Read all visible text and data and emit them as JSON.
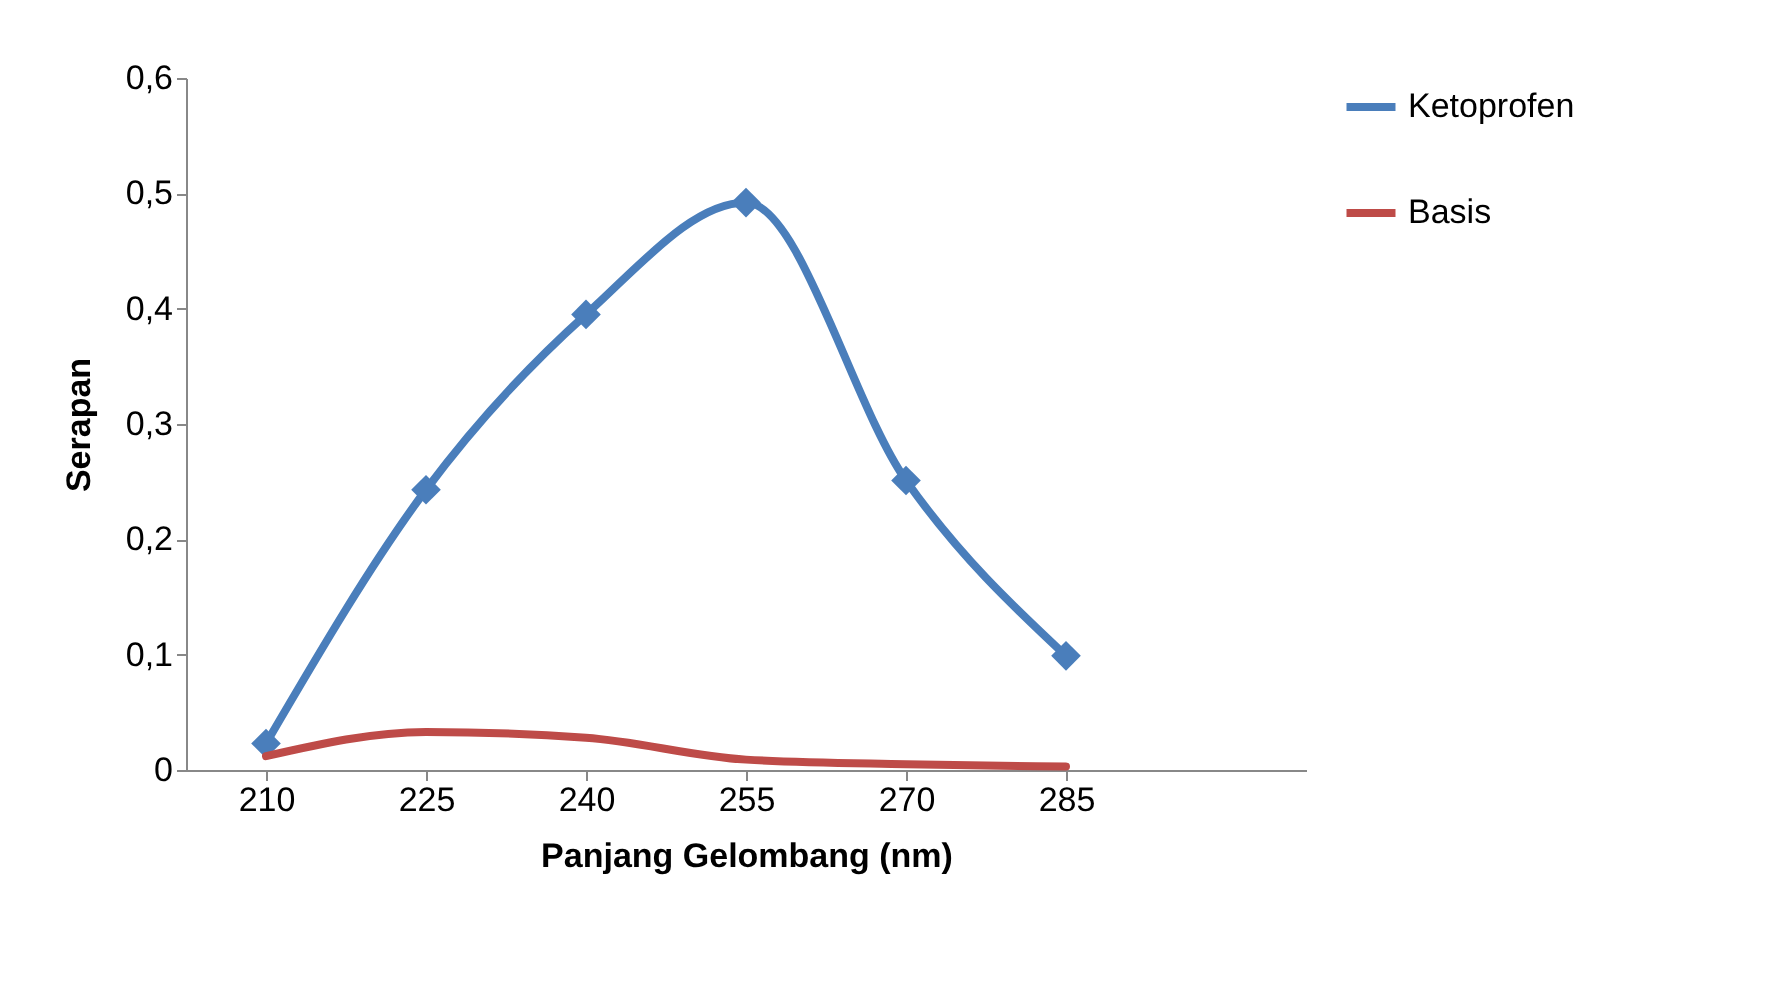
{
  "chart_data": {
    "type": "line",
    "xlabel": "Panjang Gelombang (nm)",
    "ylabel": "Serapan",
    "x": [
      210,
      225,
      240,
      255,
      270,
      285
    ],
    "series": [
      {
        "name": "Ketoprofen",
        "color": "#4a7ebb",
        "marker": "diamond",
        "values": [
          0.023,
          0.243,
          0.395,
          0.492,
          0.251,
          0.099
        ]
      },
      {
        "name": "Basis",
        "color": "#be4b48",
        "marker": "none",
        "values": [
          0.012,
          0.033,
          0.028,
          0.009,
          0.005,
          0.003
        ]
      }
    ],
    "xlim": [
      202.5,
      307.5
    ],
    "xticks": [
      210,
      225,
      240,
      255,
      270,
      285
    ],
    "ylim": [
      0,
      0.6
    ],
    "yticks": [
      0,
      {
        "value": 0.1,
        "label": "0,1"
      },
      {
        "value": 0.2,
        "label": "0,2"
      },
      {
        "value": 0.3,
        "label": "0,3"
      },
      {
        "value": 0.4,
        "label": "0,4"
      },
      {
        "value": 0.5,
        "label": "0,5"
      },
      {
        "value": 0.6,
        "label": "0,6"
      }
    ],
    "grid": false,
    "legend": "right",
    "line_style": "solid"
  }
}
